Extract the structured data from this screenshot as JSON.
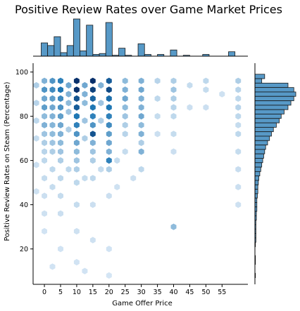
{
  "chart_data": {
    "type": "hexbin_joint",
    "title": "Positive Review Rates over Game Market Prices",
    "xlabel": "Game Offer Price",
    "ylabel": "Positive Review Rates on Steam (Percentage)",
    "xlim": [
      -3.5,
      63
    ],
    "ylim": [
      4,
      104
    ],
    "x_ticks": [
      0,
      5,
      10,
      15,
      20,
      25,
      30,
      35,
      40,
      45,
      50,
      55
    ],
    "y_ticks": [
      20,
      40,
      60,
      80,
      100
    ],
    "colors": {
      "base": "#1f77b4",
      "dark": "#08306b",
      "light": "#deebf7",
      "edge": "#1a1a1a"
    },
    "price_histogram": {
      "bin_width": 2,
      "bins": [
        {
          "x": 0,
          "count": 15
        },
        {
          "x": 2,
          "count": 12
        },
        {
          "x": 4,
          "count": 22
        },
        {
          "x": 6,
          "count": 4
        },
        {
          "x": 8,
          "count": 12
        },
        {
          "x": 10,
          "count": 42
        },
        {
          "x": 12,
          "count": 6
        },
        {
          "x": 14,
          "count": 35
        },
        {
          "x": 16,
          "count": 2
        },
        {
          "x": 18,
          "count": 3
        },
        {
          "x": 20,
          "count": 38
        },
        {
          "x": 22,
          "count": 1
        },
        {
          "x": 24,
          "count": 9
        },
        {
          "x": 26,
          "count": 1
        },
        {
          "x": 30,
          "count": 14
        },
        {
          "x": 32,
          "count": 2
        },
        {
          "x": 36,
          "count": 2
        },
        {
          "x": 40,
          "count": 7
        },
        {
          "x": 44,
          "count": 1
        },
        {
          "x": 50,
          "count": 2
        },
        {
          "x": 58,
          "count": 5
        }
      ]
    },
    "rate_histogram": {
      "bin_width": 2,
      "bins": [
        {
          "y": 98,
          "count": 10
        },
        {
          "y": 96,
          "count": 7
        },
        {
          "y": 94,
          "count": 34
        },
        {
          "y": 92,
          "count": 40
        },
        {
          "y": 90,
          "count": 42
        },
        {
          "y": 88,
          "count": 40
        },
        {
          "y": 86,
          "count": 37
        },
        {
          "y": 84,
          "count": 34
        },
        {
          "y": 82,
          "count": 30
        },
        {
          "y": 80,
          "count": 27
        },
        {
          "y": 78,
          "count": 25
        },
        {
          "y": 76,
          "count": 22
        },
        {
          "y": 74,
          "count": 19
        },
        {
          "y": 72,
          "count": 17
        },
        {
          "y": 70,
          "count": 15
        },
        {
          "y": 68,
          "count": 13
        },
        {
          "y": 66,
          "count": 11
        },
        {
          "y": 64,
          "count": 10
        },
        {
          "y": 62,
          "count": 9
        },
        {
          "y": 60,
          "count": 8
        },
        {
          "y": 58,
          "count": 7
        },
        {
          "y": 56,
          "count": 6
        },
        {
          "y": 54,
          "count": 5
        },
        {
          "y": 52,
          "count": 4
        },
        {
          "y": 50,
          "count": 3.5
        },
        {
          "y": 48,
          "count": 3
        },
        {
          "y": 46,
          "count": 3
        },
        {
          "y": 44,
          "count": 2.5
        },
        {
          "y": 42,
          "count": 2
        },
        {
          "y": 40,
          "count": 2
        },
        {
          "y": 38,
          "count": 2
        },
        {
          "y": 36,
          "count": 1.5
        },
        {
          "y": 34,
          "count": 1.5
        },
        {
          "y": 32,
          "count": 1
        },
        {
          "y": 30,
          "count": 1
        },
        {
          "y": 28,
          "count": 1
        },
        {
          "y": 26,
          "count": 1
        },
        {
          "y": 24,
          "count": 1
        },
        {
          "y": 22,
          "count": 0.5
        },
        {
          "y": 16,
          "count": 0.5
        },
        {
          "y": 14,
          "count": 0.5
        },
        {
          "y": 8,
          "count": 0.5
        }
      ]
    },
    "hexbins": [
      {
        "x": 10,
        "y": 96,
        "v": 1.0
      },
      {
        "x": 10,
        "y": 92,
        "v": 1.0
      },
      {
        "x": 10,
        "y": 88,
        "v": 0.8
      },
      {
        "x": 10,
        "y": 84,
        "v": 0.75
      },
      {
        "x": 10,
        "y": 80,
        "v": 0.6
      },
      {
        "x": 10,
        "y": 76,
        "v": 0.55
      },
      {
        "x": 10,
        "y": 72,
        "v": 0.45
      },
      {
        "x": 10,
        "y": 68,
        "v": 0.35
      },
      {
        "x": 10,
        "y": 64,
        "v": 0.25
      },
      {
        "x": 10,
        "y": 60,
        "v": 0.2
      },
      {
        "x": 10,
        "y": 56,
        "v": 0.15
      },
      {
        "x": 10,
        "y": 50,
        "v": 0.1
      },
      {
        "x": 15,
        "y": 96,
        "v": 1.0
      },
      {
        "x": 15,
        "y": 92,
        "v": 0.9
      },
      {
        "x": 15,
        "y": 88,
        "v": 0.7
      },
      {
        "x": 15,
        "y": 84,
        "v": 0.6
      },
      {
        "x": 15,
        "y": 80,
        "v": 0.55
      },
      {
        "x": 15,
        "y": 76,
        "v": 0.45
      },
      {
        "x": 15,
        "y": 72,
        "v": 0.8
      },
      {
        "x": 15,
        "y": 68,
        "v": 0.3
      },
      {
        "x": 15,
        "y": 64,
        "v": 0.2
      },
      {
        "x": 15,
        "y": 60,
        "v": 0.15
      },
      {
        "x": 15,
        "y": 52,
        "v": 0.1
      },
      {
        "x": 20,
        "y": 96,
        "v": 0.75
      },
      {
        "x": 20,
        "y": 92,
        "v": 0.85
      },
      {
        "x": 20,
        "y": 88,
        "v": 0.65
      },
      {
        "x": 20,
        "y": 84,
        "v": 0.6
      },
      {
        "x": 20,
        "y": 80,
        "v": 0.55
      },
      {
        "x": 20,
        "y": 76,
        "v": 0.5
      },
      {
        "x": 20,
        "y": 72,
        "v": 0.4
      },
      {
        "x": 20,
        "y": 68,
        "v": 0.35
      },
      {
        "x": 20,
        "y": 64,
        "v": 0.3
      },
      {
        "x": 20,
        "y": 60,
        "v": 0.55
      },
      {
        "x": 20,
        "y": 56,
        "v": 0.15
      },
      {
        "x": 5,
        "y": 96,
        "v": 0.55
      },
      {
        "x": 5,
        "y": 92,
        "v": 0.6
      },
      {
        "x": 5,
        "y": 88,
        "v": 0.5
      },
      {
        "x": 5,
        "y": 84,
        "v": 0.45
      },
      {
        "x": 5,
        "y": 80,
        "v": 0.4
      },
      {
        "x": 5,
        "y": 76,
        "v": 0.35
      },
      {
        "x": 5,
        "y": 72,
        "v": 0.3
      },
      {
        "x": 5,
        "y": 68,
        "v": 0.25
      },
      {
        "x": 5,
        "y": 64,
        "v": 0.2
      },
      {
        "x": 5,
        "y": 60,
        "v": 0.15
      },
      {
        "x": 5,
        "y": 52,
        "v": 0.1
      },
      {
        "x": 5,
        "y": 44,
        "v": 0.08
      },
      {
        "x": 7.5,
        "y": 94,
        "v": 0.35
      },
      {
        "x": 7.5,
        "y": 90,
        "v": 0.3
      },
      {
        "x": 7.5,
        "y": 86,
        "v": 0.25
      },
      {
        "x": 7.5,
        "y": 82,
        "v": 0.2
      },
      {
        "x": 7.5,
        "y": 74,
        "v": 0.15
      },
      {
        "x": 2.5,
        "y": 96,
        "v": 0.45
      },
      {
        "x": 2.5,
        "y": 92,
        "v": 0.5
      },
      {
        "x": 2.5,
        "y": 88,
        "v": 0.4
      },
      {
        "x": 2.5,
        "y": 84,
        "v": 0.35
      },
      {
        "x": 2.5,
        "y": 80,
        "v": 0.3
      },
      {
        "x": 2.5,
        "y": 76,
        "v": 0.28
      },
      {
        "x": 2.5,
        "y": 72,
        "v": 0.25
      },
      {
        "x": 2.5,
        "y": 68,
        "v": 0.2
      },
      {
        "x": 2.5,
        "y": 64,
        "v": 0.15
      },
      {
        "x": 2.5,
        "y": 56,
        "v": 0.1
      },
      {
        "x": 2.5,
        "y": 48,
        "v": 0.08
      },
      {
        "x": 0,
        "y": 96,
        "v": 0.3
      },
      {
        "x": 0,
        "y": 92,
        "v": 0.45
      },
      {
        "x": 0,
        "y": 88,
        "v": 0.35
      },
      {
        "x": 0,
        "y": 84,
        "v": 0.4
      },
      {
        "x": 0,
        "y": 80,
        "v": 0.25
      },
      {
        "x": 0,
        "y": 76,
        "v": 0.3
      },
      {
        "x": 0,
        "y": 72,
        "v": 0.2
      },
      {
        "x": 0,
        "y": 68,
        "v": 0.15
      },
      {
        "x": 0,
        "y": 64,
        "v": 0.12
      },
      {
        "x": 0,
        "y": 60,
        "v": 0.1
      },
      {
        "x": 0,
        "y": 52,
        "v": 0.08
      },
      {
        "x": 0,
        "y": 44,
        "v": 0.06
      },
      {
        "x": 0,
        "y": 36,
        "v": 0.05
      },
      {
        "x": 0,
        "y": 28,
        "v": 0.04
      },
      {
        "x": -2.5,
        "y": 94,
        "v": 0.15
      },
      {
        "x": -2.5,
        "y": 86,
        "v": 0.12
      },
      {
        "x": -2.5,
        "y": 78,
        "v": 0.1
      },
      {
        "x": -2.5,
        "y": 70,
        "v": 0.08
      },
      {
        "x": -2.5,
        "y": 58,
        "v": 0.06
      },
      {
        "x": -2.5,
        "y": 46,
        "v": 0.05
      },
      {
        "x": 12.5,
        "y": 94,
        "v": 0.35
      },
      {
        "x": 12.5,
        "y": 90,
        "v": 0.3
      },
      {
        "x": 12.5,
        "y": 86,
        "v": 0.25
      },
      {
        "x": 12.5,
        "y": 78,
        "v": 0.2
      },
      {
        "x": 12.5,
        "y": 70,
        "v": 0.15
      },
      {
        "x": 17.5,
        "y": 94,
        "v": 0.3
      },
      {
        "x": 17.5,
        "y": 86,
        "v": 0.2
      },
      {
        "x": 17.5,
        "y": 78,
        "v": 0.15
      },
      {
        "x": 25,
        "y": 96,
        "v": 0.25
      },
      {
        "x": 25,
        "y": 92,
        "v": 0.3
      },
      {
        "x": 25,
        "y": 88,
        "v": 0.35
      },
      {
        "x": 25,
        "y": 84,
        "v": 0.25
      },
      {
        "x": 25,
        "y": 80,
        "v": 0.2
      },
      {
        "x": 25,
        "y": 76,
        "v": 0.15
      },
      {
        "x": 25,
        "y": 72,
        "v": 0.12
      },
      {
        "x": 25,
        "y": 64,
        "v": 0.08
      },
      {
        "x": 30,
        "y": 96,
        "v": 0.3
      },
      {
        "x": 30,
        "y": 92,
        "v": 0.35
      },
      {
        "x": 30,
        "y": 88,
        "v": 0.3
      },
      {
        "x": 30,
        "y": 84,
        "v": 0.3
      },
      {
        "x": 30,
        "y": 80,
        "v": 0.35
      },
      {
        "x": 30,
        "y": 76,
        "v": 0.25
      },
      {
        "x": 30,
        "y": 72,
        "v": 0.3
      },
      {
        "x": 30,
        "y": 68,
        "v": 0.15
      },
      {
        "x": 30,
        "y": 64,
        "v": 0.3
      },
      {
        "x": 30,
        "y": 56,
        "v": 0.1
      },
      {
        "x": 35,
        "y": 96,
        "v": 0.12
      },
      {
        "x": 35,
        "y": 88,
        "v": 0.1
      },
      {
        "x": 35,
        "y": 80,
        "v": 0.08
      },
      {
        "x": 35,
        "y": 72,
        "v": 0.06
      },
      {
        "x": 40,
        "y": 96,
        "v": 0.15
      },
      {
        "x": 40,
        "y": 92,
        "v": 0.2
      },
      {
        "x": 40,
        "y": 88,
        "v": 0.15
      },
      {
        "x": 40,
        "y": 84,
        "v": 0.12
      },
      {
        "x": 40,
        "y": 80,
        "v": 0.1
      },
      {
        "x": 40,
        "y": 72,
        "v": 0.08
      },
      {
        "x": 40,
        "y": 64,
        "v": 0.06
      },
      {
        "x": 40,
        "y": 30,
        "v": 0.25
      },
      {
        "x": 45,
        "y": 94,
        "v": 0.08
      },
      {
        "x": 45,
        "y": 84,
        "v": 0.06
      },
      {
        "x": 50,
        "y": 96,
        "v": 0.1
      },
      {
        "x": 50,
        "y": 92,
        "v": 0.08
      },
      {
        "x": 50,
        "y": 84,
        "v": 0.06
      },
      {
        "x": 55,
        "y": 90,
        "v": 0.05
      },
      {
        "x": 60,
        "y": 96,
        "v": 0.15
      },
      {
        "x": 60,
        "y": 92,
        "v": 0.12
      },
      {
        "x": 60,
        "y": 88,
        "v": 0.1
      },
      {
        "x": 60,
        "y": 84,
        "v": 0.12
      },
      {
        "x": 60,
        "y": 80,
        "v": 0.1
      },
      {
        "x": 60,
        "y": 76,
        "v": 0.08
      },
      {
        "x": 60,
        "y": 72,
        "v": 0.1
      },
      {
        "x": 60,
        "y": 64,
        "v": 0.08
      },
      {
        "x": 60,
        "y": 56,
        "v": 0.07
      },
      {
        "x": 60,
        "y": 48,
        "v": 0.06
      },
      {
        "x": 60,
        "y": 40,
        "v": 0.05
      },
      {
        "x": 10,
        "y": 40,
        "v": 0.08
      },
      {
        "x": 15,
        "y": 40,
        "v": 0.06
      },
      {
        "x": 20,
        "y": 44,
        "v": 0.06
      },
      {
        "x": 5,
        "y": 36,
        "v": 0.06
      },
      {
        "x": 10,
        "y": 28,
        "v": 0.05
      },
      {
        "x": 15,
        "y": 24,
        "v": 0.05
      },
      {
        "x": 20,
        "y": 20,
        "v": 0.04
      },
      {
        "x": 10,
        "y": 14,
        "v": 0.04
      },
      {
        "x": 5,
        "y": 20,
        "v": 0.04
      },
      {
        "x": 2.5,
        "y": 12,
        "v": 0.04
      },
      {
        "x": 12.5,
        "y": 10,
        "v": 0.04
      },
      {
        "x": 20,
        "y": 8,
        "v": 0.03
      },
      {
        "x": 7.5,
        "y": 56,
        "v": 0.1
      },
      {
        "x": 12.5,
        "y": 52,
        "v": 0.08
      },
      {
        "x": 17.5,
        "y": 56,
        "v": 0.08
      },
      {
        "x": 22.5,
        "y": 60,
        "v": 0.08
      },
      {
        "x": 27.5,
        "y": 52,
        "v": 0.06
      },
      {
        "x": 22.5,
        "y": 48,
        "v": 0.05
      }
    ]
  }
}
